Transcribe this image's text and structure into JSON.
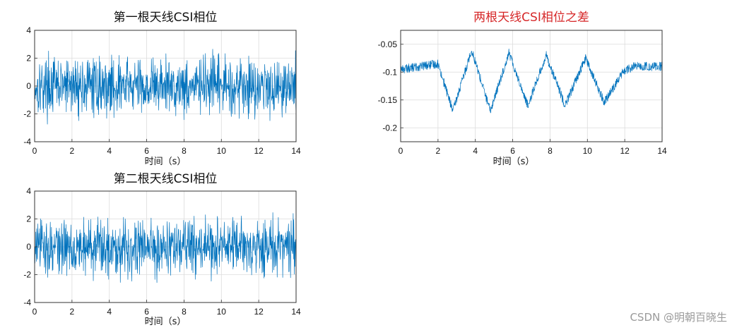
{
  "watermark": "CSDN @明朝百晓生",
  "colors": {
    "line": "#0072BD",
    "title_normal": "#111111",
    "title_red": "#D62728",
    "grid": "#dcdcdc",
    "axes": "#333333"
  },
  "chart_data": [
    {
      "id": "ant1",
      "type": "line",
      "title": "第一根天线CSI相位",
      "title_color": "#111111",
      "xlabel": "时间（s）",
      "ylabel": "",
      "xlim": [
        0,
        14
      ],
      "ylim": [
        -4,
        4
      ],
      "xticks": [
        0,
        2,
        4,
        6,
        8,
        10,
        12,
        14
      ],
      "yticks": [
        -4,
        -2,
        0,
        2,
        4
      ],
      "xtick_labels": [
        "0",
        "2",
        "4",
        "6",
        "8",
        "10",
        "12",
        "14"
      ],
      "ytick_labels": [
        "-4",
        "-2",
        "0",
        "2",
        "4"
      ],
      "grid": true,
      "series": [
        {
          "signal": "random_noise",
          "mean": 0,
          "amplitude": 3.0,
          "x_range": [
            0,
            14
          ],
          "samples": 900
        }
      ]
    },
    {
      "id": "ant2",
      "type": "line",
      "title": "第二根天线CSI相位",
      "title_color": "#111111",
      "xlabel": "时间（s）",
      "ylabel": "",
      "xlim": [
        0,
        14
      ],
      "ylim": [
        -4,
        4
      ],
      "xticks": [
        0,
        2,
        4,
        6,
        8,
        10,
        12,
        14
      ],
      "yticks": [
        -4,
        -2,
        0,
        2,
        4
      ],
      "xtick_labels": [
        "0",
        "2",
        "4",
        "6",
        "8",
        "10",
        "12",
        "14"
      ],
      "ytick_labels": [
        "-4",
        "-2",
        "0",
        "2",
        "4"
      ],
      "grid": true,
      "series": [
        {
          "signal": "random_noise",
          "mean": 0,
          "amplitude": 3.0,
          "x_range": [
            0,
            14
          ],
          "samples": 900
        }
      ]
    },
    {
      "id": "diff",
      "type": "line",
      "title": "两根天线CSI相位之差",
      "title_color": "#D62728",
      "xlabel": "时间（s）",
      "ylabel": "",
      "xlim": [
        0,
        14
      ],
      "ylim": [
        -0.225,
        -0.025
      ],
      "xticks": [
        0,
        2,
        4,
        6,
        8,
        10,
        12,
        14
      ],
      "yticks": [
        -0.2,
        -0.15,
        -0.1,
        -0.05
      ],
      "xtick_labels": [
        "0",
        "2",
        "4",
        "6",
        "8",
        "10",
        "12",
        "14"
      ],
      "ytick_labels": [
        "-0.2",
        "-0.15",
        "-0.1",
        "-0.05"
      ],
      "grid": true,
      "series": [
        {
          "envelope_x": [
            0,
            2,
            2.8,
            3.8,
            4.8,
            5.8,
            6.8,
            7.8,
            8.8,
            9.9,
            10.9,
            11.9,
            12.5,
            14
          ],
          "envelope_y": [
            -0.095,
            -0.085,
            -0.17,
            -0.06,
            -0.17,
            -0.065,
            -0.16,
            -0.07,
            -0.16,
            -0.075,
            -0.155,
            -0.1,
            -0.09,
            -0.09
          ],
          "noise": 0.008,
          "samples": 1000
        }
      ]
    }
  ]
}
